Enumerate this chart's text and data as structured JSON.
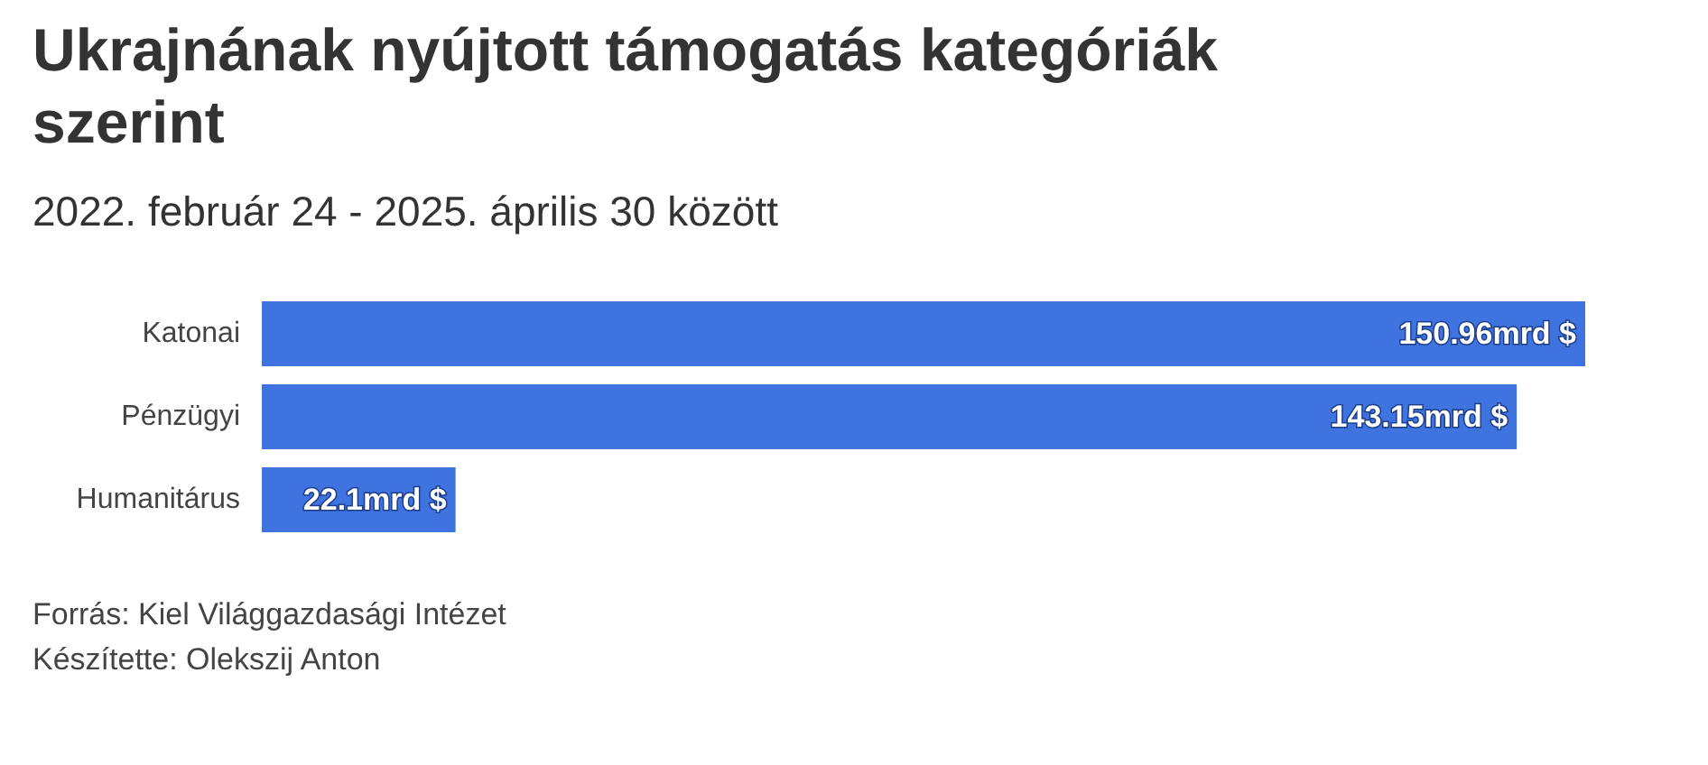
{
  "chart_data": {
    "type": "bar",
    "orientation": "horizontal",
    "title": "Ukrajnának nyújtott támogatás kategóriák szerint",
    "subtitle": "2022. február 24 - 2025. április 30 között",
    "categories": [
      "Katonai",
      "Pénzügyi",
      "Humanitárus"
    ],
    "values": [
      150.96,
      143.15,
      22.1
    ],
    "value_labels": [
      "150.96mrd $",
      "143.15mrd $",
      "22.1mrd $"
    ],
    "color": "#3f73e0",
    "grid": false,
    "annotations": [
      "Forrás: Kiel Világgazdasági Intézet",
      "Készítette: Olekszij Anton"
    ]
  }
}
